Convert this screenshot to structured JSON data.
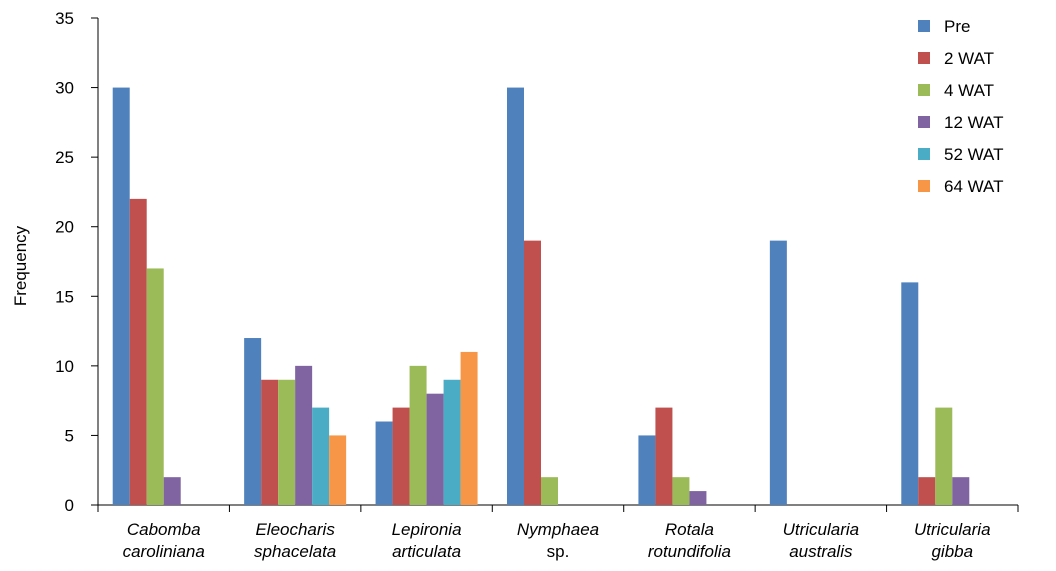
{
  "chart_data": {
    "type": "bar",
    "ylabel": "Frequency",
    "ylim": [
      0,
      35
    ],
    "yticks": [
      0,
      5,
      10,
      15,
      20,
      25,
      30,
      35
    ],
    "categories": [
      [
        "Cabomba",
        "caroliniana"
      ],
      [
        "Eleocharis",
        "sphacelata"
      ],
      [
        "Lepironia",
        "articulata"
      ],
      [
        "Nymphaea",
        "sp."
      ],
      [
        "Rotala",
        "rotundifolia"
      ],
      [
        "Utricularia",
        "australis"
      ],
      [
        "Utricularia",
        "gibba"
      ]
    ],
    "legend_position": "top-right",
    "grid": false,
    "series": [
      {
        "name": "Pre",
        "color": "#4F81BD",
        "values": [
          30,
          12,
          6,
          30,
          5,
          19,
          16
        ]
      },
      {
        "name": "2 WAT",
        "color": "#C0504D",
        "values": [
          22,
          9,
          7,
          19,
          7,
          0,
          2
        ]
      },
      {
        "name": "4 WAT",
        "color": "#9BBB59",
        "values": [
          17,
          9,
          10,
          2,
          2,
          0,
          7
        ]
      },
      {
        "name": "12 WAT",
        "color": "#8064A2",
        "values": [
          2,
          10,
          8,
          0,
          1,
          0,
          2
        ]
      },
      {
        "name": "52 WAT",
        "color": "#4BACC6",
        "values": [
          0,
          7,
          9,
          0,
          0,
          0,
          0
        ]
      },
      {
        "name": "64 WAT",
        "color": "#F79646",
        "values": [
          0,
          5,
          11,
          0,
          0,
          0,
          0
        ]
      }
    ]
  }
}
